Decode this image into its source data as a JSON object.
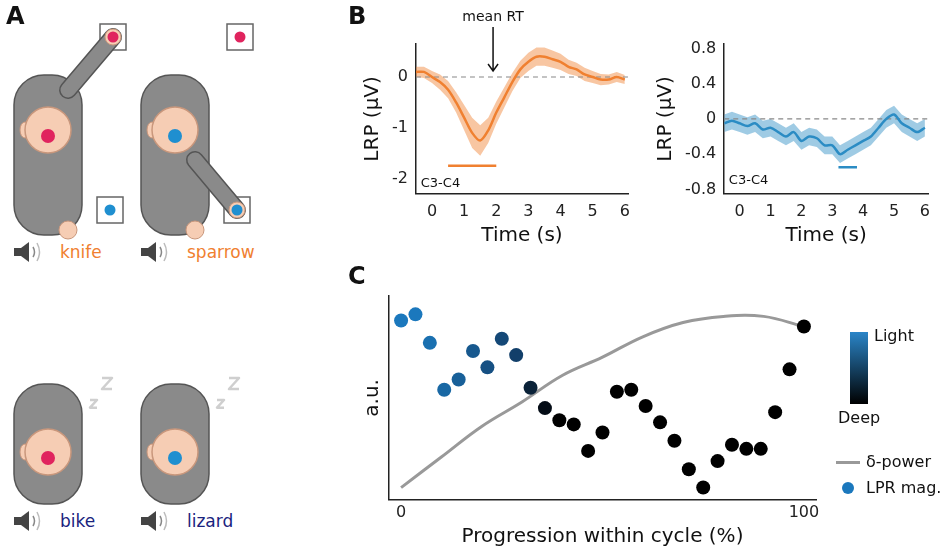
{
  "panel_a": {
    "letter": "A",
    "targets": {
      "top": "#e0245e",
      "bottom": "#1f8fd0"
    },
    "rows": [
      {
        "asleep": false,
        "trials": [
          {
            "word": "knife",
            "color": "#f08030",
            "head_dot": "#e0245e"
          },
          {
            "word": "sparrow",
            "color": "#f08030",
            "head_dot": "#1f8fd0"
          }
        ]
      },
      {
        "asleep": true,
        "trials": [
          {
            "word": "bike",
            "color": "#1a237e",
            "head_dot": "#e0245e"
          },
          {
            "word": "lizard",
            "color": "#1a237e",
            "head_dot": "#1f8fd0"
          }
        ]
      }
    ]
  },
  "chart_data": [
    {
      "panel": "B",
      "type": "line",
      "x_label": "Time (s)",
      "y_label": "LRP (µV)",
      "x": [
        -0.5,
        -0.25,
        0,
        0.25,
        0.5,
        0.75,
        1,
        1.25,
        1.5,
        1.75,
        2,
        2.25,
        2.5,
        2.75,
        3,
        3.25,
        3.5,
        3.75,
        4,
        4.25,
        4.5,
        4.75,
        5,
        5.25,
        5.5,
        5.75,
        6
      ],
      "series": [
        {
          "color": "#f08030",
          "values": [
            0.1,
            0.1,
            0.0,
            -0.1,
            -0.25,
            -0.5,
            -0.8,
            -1.1,
            -1.25,
            -1.05,
            -0.7,
            -0.4,
            -0.1,
            0.15,
            0.3,
            0.4,
            0.4,
            0.35,
            0.3,
            0.2,
            0.15,
            0.05,
            0.0,
            -0.05,
            -0.05,
            0.0,
            -0.05
          ],
          "lower": [
            0.0,
            -0.02,
            -0.12,
            -0.25,
            -0.42,
            -0.7,
            -1.05,
            -1.4,
            -1.55,
            -1.3,
            -0.92,
            -0.6,
            -0.28,
            -0.02,
            0.12,
            0.22,
            0.22,
            0.18,
            0.14,
            0.06,
            0.02,
            -0.08,
            -0.12,
            -0.16,
            -0.15,
            -0.1,
            -0.14
          ],
          "upper": [
            0.2,
            0.2,
            0.12,
            0.05,
            -0.08,
            -0.3,
            -0.55,
            -0.8,
            -0.95,
            -0.8,
            -0.48,
            -0.2,
            0.08,
            0.32,
            0.48,
            0.58,
            0.58,
            0.52,
            0.46,
            0.34,
            0.28,
            0.18,
            0.12,
            0.06,
            0.05,
            0.1,
            0.04
          ]
        }
      ],
      "baseline": 0,
      "significance": {
        "x": [
          0.5,
          2.0
        ],
        "y": -1.75
      },
      "annotations": [
        {
          "text": "mean RT",
          "x": 1.9
        },
        {
          "text": "C3-C4",
          "x": -0.35,
          "y": -2.1
        }
      ],
      "xlim": [
        -0.5,
        6.1
      ],
      "xticks": [
        0,
        1,
        2,
        3,
        4,
        5,
        6
      ],
      "ylim": [
        -2.3,
        0.65
      ],
      "yticks": [
        -2,
        -1,
        0
      ],
      "grid": false
    },
    {
      "type": "line",
      "x_label": "Time (s)",
      "y_label": "LRP (µV)",
      "x": [
        -0.5,
        -0.25,
        0,
        0.25,
        0.5,
        0.75,
        1,
        1.25,
        1.5,
        1.75,
        2,
        2.25,
        2.5,
        2.75,
        3,
        3.25,
        3.5,
        3.75,
        4,
        4.25,
        4.5,
        4.75,
        5,
        5.25,
        5.5,
        5.75,
        6
      ],
      "series": [
        {
          "color": "#2b8cc4",
          "values": [
            -0.05,
            -0.02,
            -0.05,
            -0.08,
            -0.05,
            -0.12,
            -0.1,
            -0.15,
            -0.2,
            -0.15,
            -0.25,
            -0.2,
            -0.22,
            -0.3,
            -0.3,
            -0.4,
            -0.35,
            -0.3,
            -0.25,
            -0.2,
            -0.1,
            0.0,
            0.05,
            -0.05,
            -0.1,
            -0.15,
            -0.1
          ],
          "lower": [
            -0.15,
            -0.12,
            -0.15,
            -0.18,
            -0.15,
            -0.22,
            -0.2,
            -0.25,
            -0.3,
            -0.25,
            -0.35,
            -0.3,
            -0.32,
            -0.4,
            -0.4,
            -0.5,
            -0.45,
            -0.4,
            -0.35,
            -0.3,
            -0.2,
            -0.1,
            -0.05,
            -0.15,
            -0.2,
            -0.25,
            -0.2
          ],
          "upper": [
            0.05,
            0.08,
            0.05,
            0.02,
            0.05,
            -0.02,
            0.0,
            -0.05,
            -0.1,
            -0.05,
            -0.15,
            -0.1,
            -0.12,
            -0.2,
            -0.2,
            -0.3,
            -0.25,
            -0.2,
            -0.15,
            -0.1,
            0.0,
            0.1,
            0.15,
            0.05,
            0.0,
            -0.05,
            0.0
          ]
        }
      ],
      "baseline": 0,
      "significance": {
        "x": [
          3.2,
          3.8
        ],
        "y": -0.55
      },
      "annotations": [
        {
          "text": "C3-C4",
          "x": -0.35,
          "y": -0.7
        }
      ],
      "xlim": [
        -0.5,
        6.1
      ],
      "xticks": [
        0,
        1,
        2,
        3,
        4,
        5,
        6
      ],
      "ylim": [
        -0.85,
        0.85
      ],
      "yticks": [
        -0.8,
        -0.4,
        0,
        0.4,
        0.8
      ],
      "grid": false
    },
    {
      "panel": "C",
      "type": "scatter",
      "x_label": "Progression within cycle (%)",
      "y_label": "a.u.",
      "series": [
        {
          "name": "δ-power",
          "type": "line",
          "color": "#999999",
          "x": [
            0,
            10,
            20,
            30,
            40,
            50,
            60,
            70,
            80,
            90,
            100
          ],
          "values": [
            0.06,
            0.21,
            0.36,
            0.48,
            0.61,
            0.7,
            0.8,
            0.87,
            0.9,
            0.9,
            0.85
          ]
        },
        {
          "name": "LPR mag.",
          "type": "scatter",
          "color": "#1b78bd",
          "x": [
            0,
            3.57,
            7.14,
            10.71,
            14.29,
            17.86,
            21.43,
            25,
            28.57,
            32.14,
            35.71,
            39.29,
            42.86,
            46.43,
            50,
            53.57,
            57.14,
            60.71,
            64.29,
            67.86,
            71.43,
            75,
            78.57,
            82.14,
            85.71,
            89.29,
            92.86,
            96.43,
            100
          ],
          "values": [
            0.88,
            0.91,
            0.77,
            0.54,
            0.59,
            0.73,
            0.65,
            0.79,
            0.71,
            0.55,
            0.45,
            0.39,
            0.37,
            0.24,
            0.33,
            0.53,
            0.54,
            0.46,
            0.38,
            0.29,
            0.15,
            0.06,
            0.19,
            0.27,
            0.25,
            0.25,
            0.43,
            0.64,
            0.85
          ],
          "colors": [
            "#1b78bd",
            "#1b78bd",
            "#1a70b0",
            "#1968a4",
            "#186099",
            "#17588e",
            "#165083",
            "#144877",
            "#123f6a",
            "#0a2238",
            "#040c16",
            "#000000",
            "#000000",
            "#000000",
            "#000000",
            "#000000",
            "#000000",
            "#000000",
            "#000000",
            "#000000",
            "#000000",
            "#000000",
            "#000000",
            "#000000",
            "#000000",
            "#000000",
            "#000000",
            "#000000",
            "#000000"
          ]
        }
      ],
      "colorbar": {
        "top_label": "Light",
        "bottom_label": "Deep",
        "colors": [
          "#2a85c8",
          "#000000"
        ]
      },
      "xlim": [
        -3,
        103
      ],
      "xticks": [
        0,
        100
      ],
      "ylim": [
        0,
        1
      ],
      "yticks": [],
      "tick_labels": "x",
      "legend": "right",
      "grid": false
    }
  ]
}
